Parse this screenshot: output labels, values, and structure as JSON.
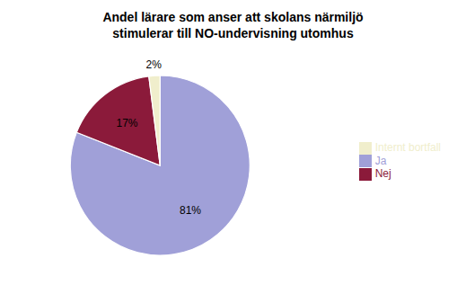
{
  "chart_data": {
    "type": "pie",
    "title": "Andel lärare som anser att skolans närmiljö\nstimulerar till NO-undervisning utomhus",
    "categories": [
      "Ja",
      "Nej",
      "Internt bortfall"
    ],
    "values": [
      81,
      17,
      2
    ],
    "value_labels": [
      "81%",
      "17%",
      "2%"
    ],
    "colors": [
      "#a0a0d8",
      "#8B1A3A",
      "#f0eecc"
    ],
    "data_labels": true,
    "legend": "right"
  }
}
